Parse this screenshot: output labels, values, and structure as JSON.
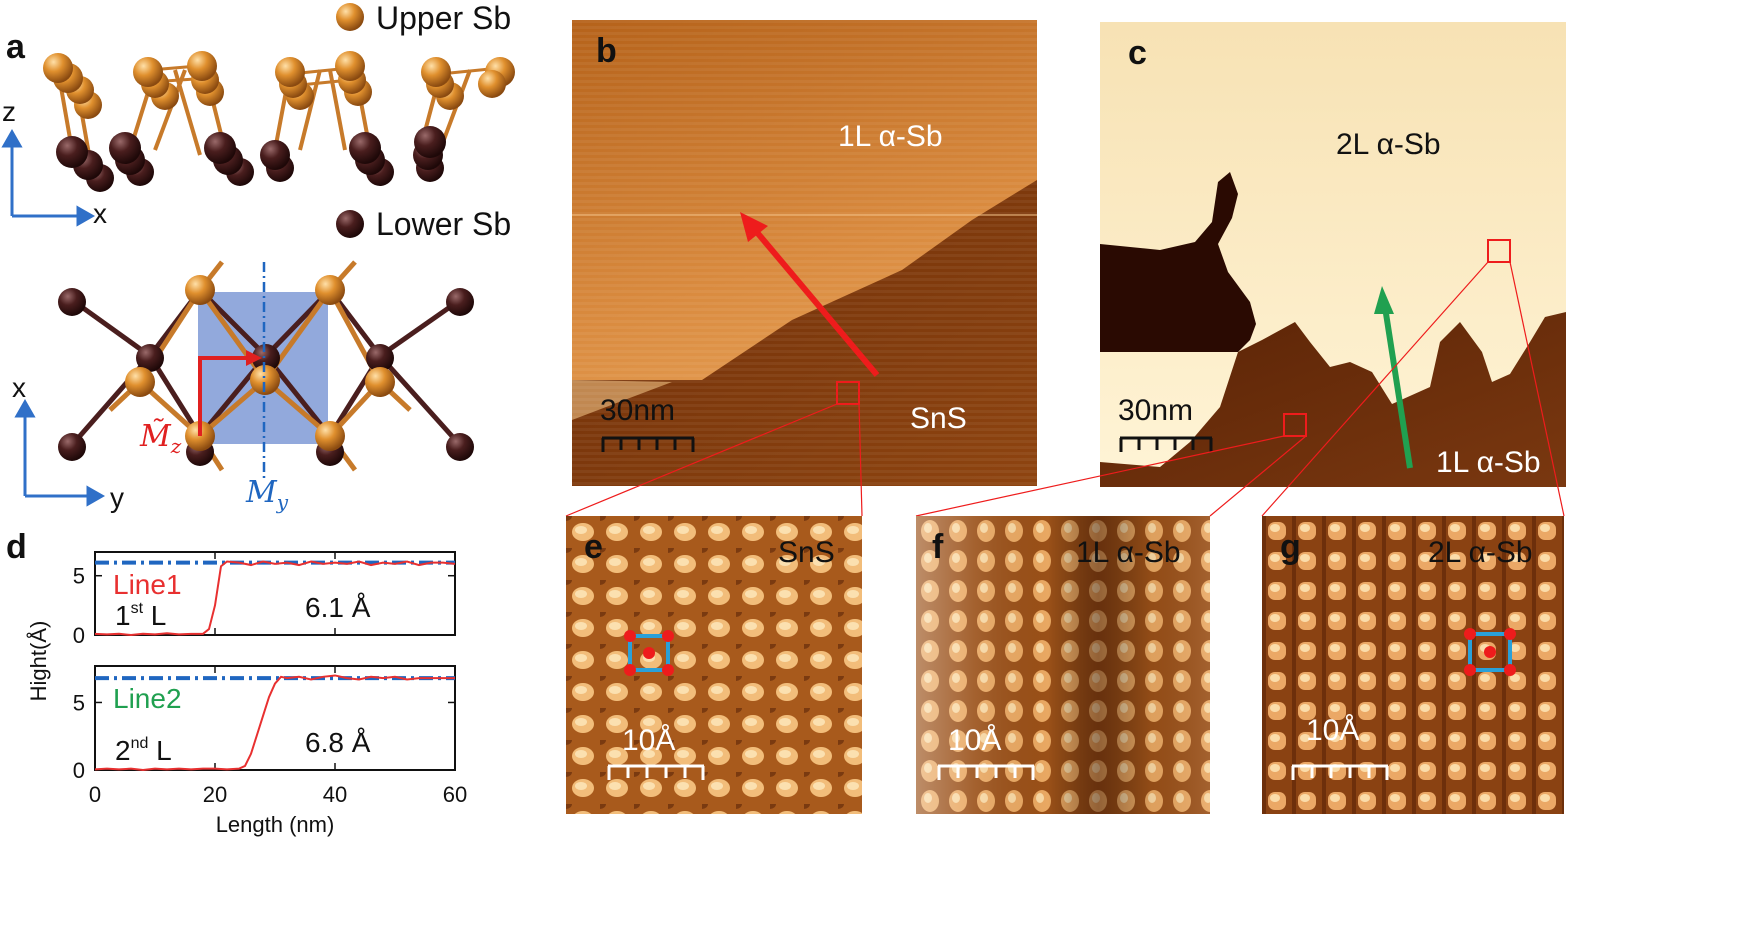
{
  "panel_a": {
    "label": "a",
    "legend_upper": "Upper Sb",
    "legend_lower": "Lower Sb",
    "axis_z": "z",
    "axis_x1": "x",
    "axis_x2": "x",
    "axis_y": "y",
    "sym_mz": "M̃",
    "sym_mz_sub": "z",
    "sym_my": "M",
    "sym_my_sub": "y",
    "colors": {
      "upper": "#d9862a",
      "lower": "#4a1e1e",
      "cell": "#7f9ad6",
      "mirror": "#1f66c0",
      "arrow": "#e02020"
    }
  },
  "panel_b": {
    "label": "b",
    "region_top": "1L α-Sb",
    "region_bottom": "SnS",
    "scale": "30nm"
  },
  "panel_c": {
    "label": "c",
    "region_top": "2L α-Sb",
    "region_bottom": "1L α-Sb",
    "scale": "30nm"
  },
  "panel_e": {
    "label": "e",
    "title": "SnS",
    "scale": "10Å"
  },
  "panel_f": {
    "label": "f",
    "title": "1L α-Sb",
    "scale": "10Å"
  },
  "panel_g": {
    "label": "g",
    "title": "2L α-Sb",
    "scale": "10Å"
  },
  "chart_data": {
    "label": "d",
    "type": "line",
    "ylabel": "Hight(Å)",
    "xlabel": "Length (nm)",
    "xlim": [
      0,
      60
    ],
    "xticks": [
      "0",
      "20",
      "40",
      "60"
    ],
    "series": [
      {
        "name": "Line1",
        "color": "#e83030",
        "layer": "1",
        "layer_sup": "st",
        "layer_suffix": "L",
        "step": "6.1 Å",
        "ylim": [
          0,
          7
        ],
        "yticks": [
          "0",
          "5"
        ],
        "plateau": 6.1,
        "x": [
          0,
          2,
          4,
          6,
          8,
          10,
          12,
          14,
          16,
          18,
          19,
          20,
          21,
          22,
          24,
          26,
          28,
          30,
          32,
          34,
          36,
          38,
          40,
          42,
          44,
          46,
          48,
          50,
          52,
          54,
          56,
          58,
          60
        ],
        "y": [
          0.1,
          0.05,
          0.1,
          0.0,
          0.1,
          0.05,
          0.15,
          0.05,
          0.1,
          0.1,
          0.5,
          2.5,
          5.8,
          6.2,
          6.1,
          5.9,
          6.2,
          6.0,
          6.1,
          5.9,
          6.2,
          6.0,
          6.1,
          6.0,
          6.2,
          5.9,
          6.1,
          6.0,
          6.2,
          5.9,
          6.1,
          6.1,
          6.0
        ]
      },
      {
        "name": "Line2",
        "color": "#20a050",
        "layer": "2",
        "layer_sup": "nd",
        "layer_suffix": "L",
        "step": "6.8 Å",
        "ylim": [
          0,
          7.7
        ],
        "yticks": [
          "0",
          "5"
        ],
        "plateau": 6.8,
        "x": [
          0,
          2,
          4,
          6,
          8,
          10,
          12,
          14,
          16,
          18,
          20,
          22,
          24,
          25,
          26,
          27,
          28,
          29,
          30,
          31,
          32,
          34,
          36,
          38,
          40,
          42,
          44,
          46,
          48,
          50,
          52,
          54,
          56,
          58,
          60
        ],
        "y": [
          0.05,
          0.1,
          0.05,
          0.1,
          0.0,
          0.1,
          0.05,
          0.1,
          0.05,
          0.1,
          0.1,
          0.05,
          0.1,
          0.3,
          1.2,
          2.6,
          4.0,
          5.4,
          6.4,
          6.9,
          6.8,
          6.9,
          6.7,
          6.9,
          7.0,
          6.8,
          6.7,
          6.9,
          6.8,
          6.9,
          6.7,
          6.8,
          6.8,
          6.8,
          6.8
        ]
      }
    ]
  }
}
